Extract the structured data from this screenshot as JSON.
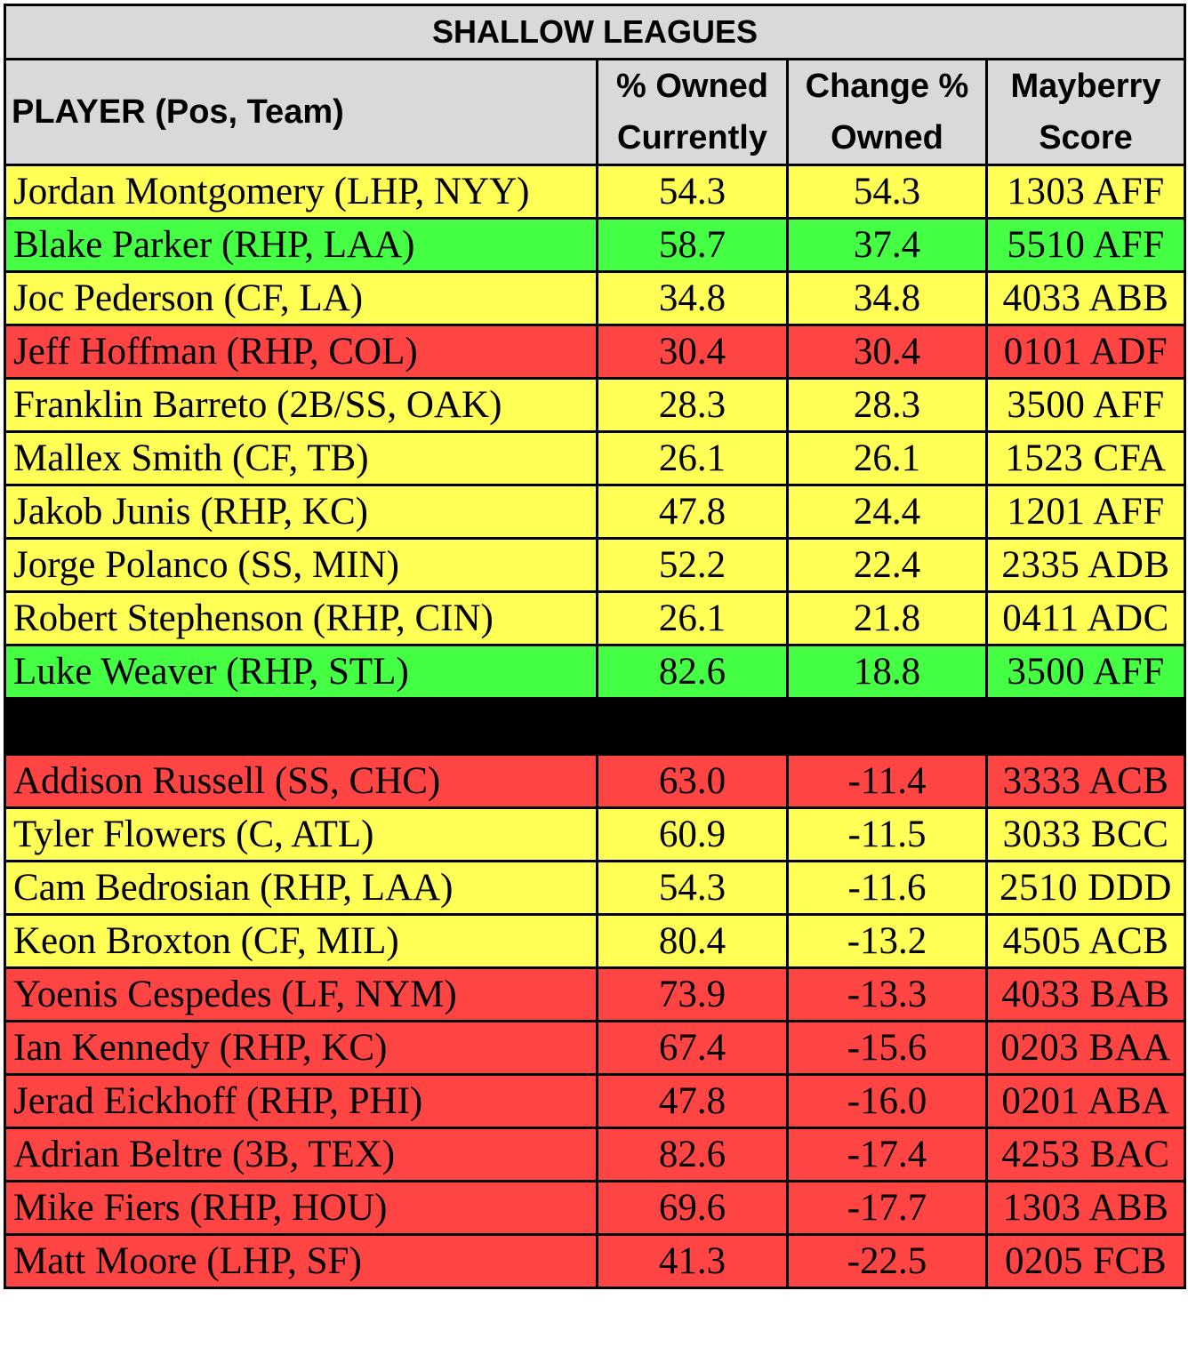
{
  "title": "SHALLOW LEAGUES",
  "headers": {
    "player": "PLAYER (Pos, Team)",
    "owned_line1": "% Owned",
    "owned_line2": "Currently",
    "change_line1": "Change %",
    "change_line2": "Owned",
    "score_line1": "Mayberry",
    "score_line2": "Score"
  },
  "colors": {
    "yellow": "#ffff55",
    "green": "#44ff44",
    "red": "#ff4444",
    "header": "#d9d9d9",
    "separator": "#000000"
  },
  "risers": [
    {
      "player": "Jordan Montgomery (LHP, NYY)",
      "owned": "54.3",
      "change": "54.3",
      "score": "1303 AFF",
      "color": "yellow"
    },
    {
      "player": "Blake Parker (RHP, LAA)",
      "owned": "58.7",
      "change": "37.4",
      "score": "5510 AFF",
      "color": "green"
    },
    {
      "player": "Joc Pederson (CF, LA)",
      "owned": "34.8",
      "change": "34.8",
      "score": "4033 ABB",
      "color": "yellow"
    },
    {
      "player": "Jeff Hoffman (RHP, COL)",
      "owned": "30.4",
      "change": "30.4",
      "score": "0101 ADF",
      "color": "red"
    },
    {
      "player": "Franklin Barreto (2B/SS, OAK)",
      "owned": "28.3",
      "change": "28.3",
      "score": "3500 AFF",
      "color": "yellow"
    },
    {
      "player": "Mallex Smith (CF, TB)",
      "owned": "26.1",
      "change": "26.1",
      "score": "1523 CFA",
      "color": "yellow"
    },
    {
      "player": "Jakob Junis (RHP, KC)",
      "owned": "47.8",
      "change": "24.4",
      "score": "1201 AFF",
      "color": "yellow"
    },
    {
      "player": "Jorge Polanco (SS, MIN)",
      "owned": "52.2",
      "change": "22.4",
      "score": "2335 ADB",
      "color": "yellow"
    },
    {
      "player": "Robert Stephenson (RHP, CIN)",
      "owned": "26.1",
      "change": "21.8",
      "score": "0411 ADC",
      "color": "yellow"
    },
    {
      "player": "Luke Weaver (RHP, STL)",
      "owned": "82.6",
      "change": "18.8",
      "score": "3500 AFF",
      "color": "green"
    }
  ],
  "fallers": [
    {
      "player": "Addison Russell (SS, CHC)",
      "owned": "63.0",
      "change": "-11.4",
      "score": "3333 ACB",
      "color": "red"
    },
    {
      "player": "Tyler Flowers (C, ATL)",
      "owned": "60.9",
      "change": "-11.5",
      "score": "3033 BCC",
      "color": "yellow"
    },
    {
      "player": "Cam Bedrosian (RHP, LAA)",
      "owned": "54.3",
      "change": "-11.6",
      "score": "2510 DDD",
      "color": "yellow"
    },
    {
      "player": "Keon Broxton (CF, MIL)",
      "owned": "80.4",
      "change": "-13.2",
      "score": "4505 ACB",
      "color": "yellow"
    },
    {
      "player": "Yoenis Cespedes (LF, NYM)",
      "owned": "73.9",
      "change": "-13.3",
      "score": "4033 BAB",
      "color": "red"
    },
    {
      "player": "Ian Kennedy (RHP, KC)",
      "owned": "67.4",
      "change": "-15.6",
      "score": "0203 BAA",
      "color": "red"
    },
    {
      "player": "Jerad Eickhoff (RHP, PHI)",
      "owned": "47.8",
      "change": "-16.0",
      "score": "0201 ABA",
      "color": "red"
    },
    {
      "player": "Adrian Beltre (3B, TEX)",
      "owned": "82.6",
      "change": "-17.4",
      "score": "4253 BAC",
      "color": "red"
    },
    {
      "player": "Mike Fiers (RHP, HOU)",
      "owned": "69.6",
      "change": "-17.7",
      "score": "1303 ABB",
      "color": "red"
    },
    {
      "player": "Matt Moore (LHP, SF)",
      "owned": "41.3",
      "change": "-22.5",
      "score": "0205 FCB",
      "color": "red"
    }
  ]
}
